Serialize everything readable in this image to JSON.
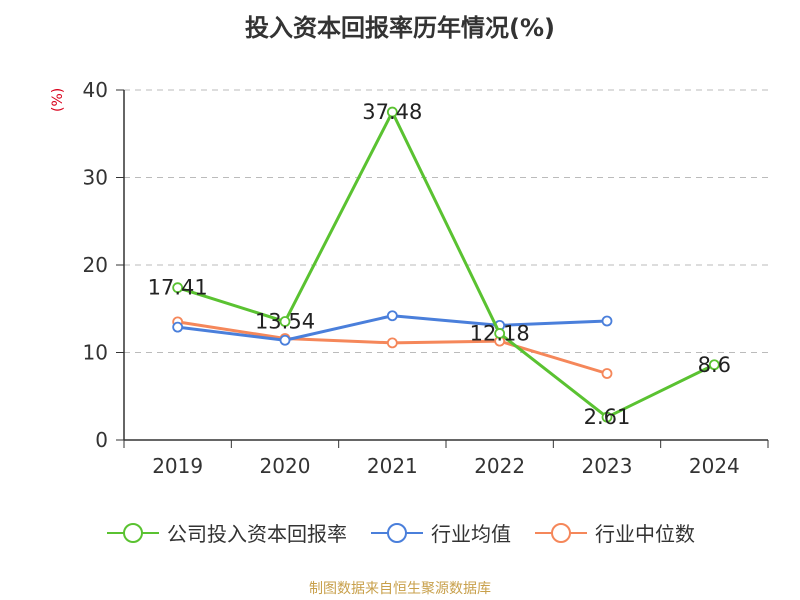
{
  "chart_data": {
    "type": "line",
    "title": "投入资本回报率历年情况(%)",
    "ylabel": "(%)",
    "ylim": [
      0,
      40
    ],
    "yticks": [
      0,
      10,
      20,
      30,
      40
    ],
    "categories": [
      "2019",
      "2020",
      "2021",
      "2022",
      "2023",
      "2024"
    ],
    "grid": true,
    "legend_position": "bottom",
    "series": [
      {
        "name": "公司投入资本回报率",
        "color": "#5ac231",
        "values": [
          17.41,
          13.54,
          37.48,
          12.18,
          2.61,
          8.6
        ],
        "labels": [
          "17.41",
          "13.54",
          "37.48",
          "12.18",
          "2.61",
          "8.6"
        ]
      },
      {
        "name": "行业均值",
        "color": "#4a7fdb",
        "values": [
          12.9,
          11.4,
          14.2,
          13.1,
          13.6,
          null
        ]
      },
      {
        "name": "行业中位数",
        "color": "#f5875a",
        "values": [
          13.5,
          11.6,
          11.1,
          11.3,
          7.6,
          null
        ]
      }
    ]
  },
  "source": "制图数据来自恒生聚源数据库"
}
